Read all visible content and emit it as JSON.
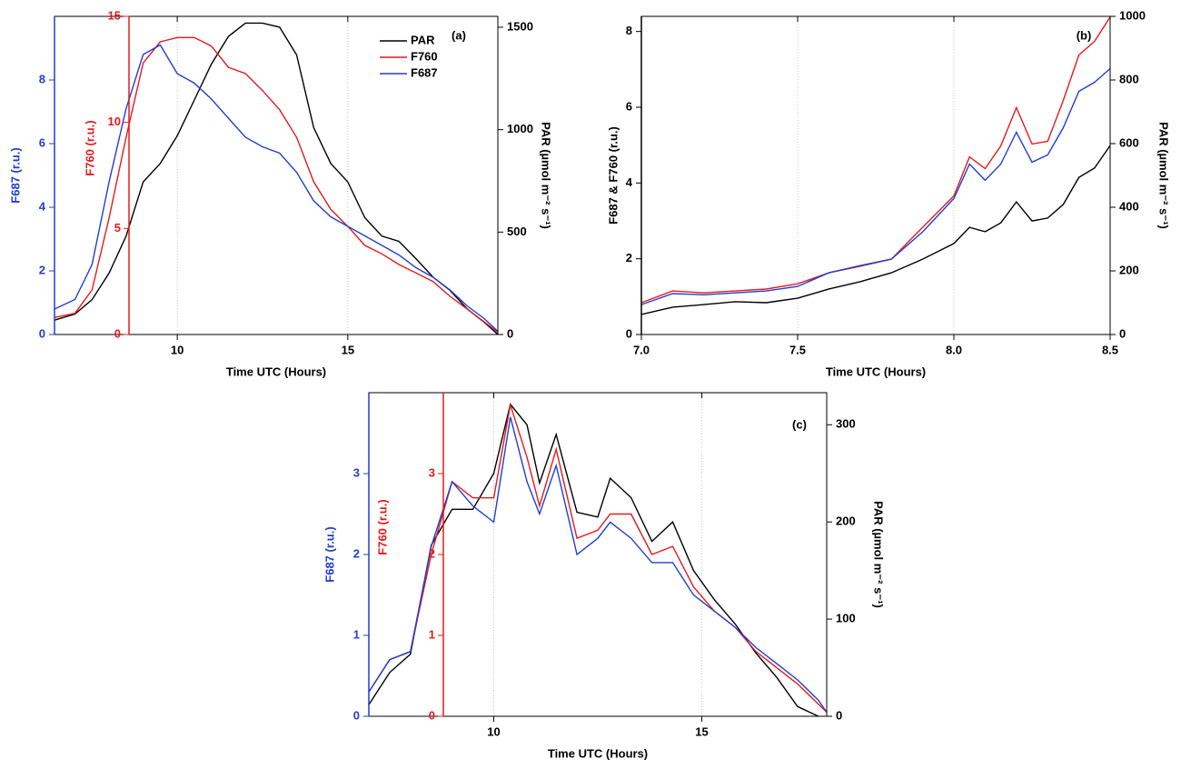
{
  "chart_data": [
    {
      "type": "line",
      "panel_label": "(a)",
      "x_label": "Time UTC (Hours)",
      "y_label": "F687 (r.u.)",
      "y2_label": "PAR (µmol m⁻² s⁻¹)",
      "y3_label": "F760 (r.u.)",
      "xlim": [
        6.4,
        19.4
      ],
      "xticks": [
        10,
        15
      ],
      "ylim": [
        0,
        10
      ],
      "yticks": [
        0,
        2,
        4,
        6,
        8
      ],
      "y2lim": [
        0,
        1553
      ],
      "y2ticks": [
        0,
        500,
        1000,
        1500
      ],
      "y3lim": [
        0,
        15
      ],
      "y3ticks": [
        0,
        5,
        10,
        15
      ],
      "grid": "x",
      "legend": "upper right",
      "x": [
        6.4,
        7,
        7.5,
        8,
        8.5,
        9,
        9.5,
        10,
        10.5,
        11,
        11.5,
        12,
        12.5,
        13,
        13.5,
        14,
        14.5,
        15,
        15.5,
        16,
        16.5,
        17,
        17.5,
        18,
        18.5,
        19,
        19.4
      ],
      "series": [
        {
          "name": "PAR",
          "color": "#000000",
          "axis": "y2",
          "values": [
            70,
            100,
            170,
            300,
            480,
            745,
            835,
            970,
            1145,
            1320,
            1455,
            1520,
            1520,
            1500,
            1365,
            1010,
            835,
            745,
            570,
            480,
            455,
            370,
            280,
            215,
            125,
            60,
            0
          ]
        },
        {
          "name": "F760",
          "color": "#e8191c",
          "axis": "y3",
          "values": [
            0.8,
            1.0,
            2.1,
            5.5,
            9.3,
            12.8,
            13.8,
            14.0,
            14.0,
            13.6,
            12.6,
            12.3,
            11.5,
            10.6,
            9.3,
            7.2,
            5.9,
            5.1,
            4.2,
            3.8,
            3.3,
            2.9,
            2.5,
            1.8,
            1.2,
            0.6,
            0.1
          ]
        },
        {
          "name": "F687",
          "color": "#1f3fd0",
          "axis": "y",
          "values": [
            0.8,
            1.1,
            2.2,
            4.8,
            7.1,
            8.8,
            9.1,
            8.2,
            7.9,
            7.4,
            6.8,
            6.2,
            5.9,
            5.7,
            5.1,
            4.2,
            3.7,
            3.4,
            3.1,
            2.8,
            2.5,
            2.1,
            1.8,
            1.4,
            0.9,
            0.5,
            0.1
          ]
        }
      ]
    },
    {
      "type": "line",
      "panel_label": "(b)",
      "x_label": "Time UTC (Hours)",
      "y_label": "F687 & F760 (r.u.)",
      "y2_label": "PAR (µmol m⁻² s⁻¹)",
      "xlim": [
        7.0,
        8.5
      ],
      "xticks": [
        {
          "value": 7,
          "label": "7.0"
        },
        7.5,
        {
          "value": 8,
          "label": "8.0"
        },
        8.5
      ],
      "ylim": [
        0,
        8.4
      ],
      "yticks": [
        0,
        2,
        4,
        6,
        8
      ],
      "y2lim": [
        0,
        1000
      ],
      "y2ticks": [
        0,
        200,
        400,
        600,
        800,
        1000
      ],
      "grid": "x",
      "x": [
        7.0,
        7.1,
        7.2,
        7.3,
        7.4,
        7.5,
        7.6,
        7.7,
        7.8,
        7.9,
        8.0,
        8.05,
        8.1,
        8.15,
        8.2,
        8.25,
        8.3,
        8.35,
        8.4,
        8.45,
        8.5
      ],
      "series": [
        {
          "name": "PAR",
          "color": "#000000",
          "axis": "y2",
          "values": [
            63,
            86,
            94,
            103,
            100,
            114,
            143,
            166,
            194,
            237,
            286,
            337,
            323,
            351,
            417,
            357,
            366,
            409,
            494,
            523,
            594
          ]
        },
        {
          "name": "F760",
          "color": "#e8191c",
          "axis": "y",
          "values": [
            0.84,
            1.15,
            1.1,
            1.15,
            1.2,
            1.34,
            1.63,
            1.8,
            1.99,
            2.83,
            3.66,
            4.69,
            4.38,
            4.98,
            5.99,
            5.03,
            5.1,
            6.18,
            7.38,
            7.74,
            8.38
          ]
        },
        {
          "name": "F687",
          "color": "#1f3fd0",
          "axis": "y",
          "values": [
            0.79,
            1.08,
            1.05,
            1.1,
            1.15,
            1.27,
            1.63,
            1.82,
            1.99,
            2.71,
            3.59,
            4.5,
            4.07,
            4.5,
            5.34,
            4.55,
            4.74,
            5.46,
            6.42,
            6.66,
            7.02
          ]
        }
      ]
    },
    {
      "type": "line",
      "panel_label": "(c)",
      "x_label": "Time UTC (Hours)",
      "y_label": "F687 (r.u.)",
      "y2_label": "PAR (µmol m⁻² s⁻¹)",
      "y3_label": "F760 (r.u.)",
      "xlim": [
        7.0,
        18.0
      ],
      "xticks": [
        10,
        15
      ],
      "ylim": [
        0,
        4
      ],
      "yticks": [
        0,
        1,
        2,
        3
      ],
      "y2lim": [
        0,
        333
      ],
      "y2ticks": [
        0,
        100,
        200,
        300
      ],
      "y3lim": [
        0,
        4
      ],
      "y3ticks": [
        0,
        1,
        2,
        3
      ],
      "grid": "x",
      "x": [
        7,
        7.5,
        8,
        8.5,
        9,
        9.5,
        10,
        10.4,
        10.8,
        11.1,
        11.5,
        12,
        12.5,
        12.8,
        13.3,
        13.8,
        14.3,
        14.8,
        15.3,
        15.8,
        16.3,
        16.8,
        17.3,
        17.8,
        18.0
      ],
      "series": [
        {
          "name": "PAR",
          "color": "#000000",
          "axis": "y2",
          "values": [
            12,
            45,
            64,
            176,
            213,
            213,
            250,
            321,
            300,
            240,
            290,
            210,
            205,
            245,
            225,
            180,
            200,
            150,
            120,
            95,
            65,
            40,
            10,
            0,
            null
          ]
        },
        {
          "name": "F760",
          "color": "#e8191c",
          "axis": "y3",
          "values": [
            0.3,
            0.7,
            0.8,
            2.0,
            2.9,
            2.7,
            2.7,
            3.85,
            3.2,
            2.6,
            3.3,
            2.2,
            2.3,
            2.5,
            2.5,
            2.0,
            2.1,
            1.6,
            1.3,
            1.1,
            0.8,
            0.6,
            0.4,
            0.15,
            0.05
          ]
        },
        {
          "name": "F687",
          "color": "#1f3fd0",
          "axis": "y",
          "values": [
            0.3,
            0.7,
            0.8,
            2.1,
            2.9,
            2.6,
            2.4,
            3.7,
            2.9,
            2.5,
            3.1,
            2.0,
            2.2,
            2.4,
            2.2,
            1.9,
            1.9,
            1.5,
            1.3,
            1.1,
            0.85,
            0.65,
            0.45,
            0.2,
            0.05
          ]
        }
      ]
    }
  ]
}
